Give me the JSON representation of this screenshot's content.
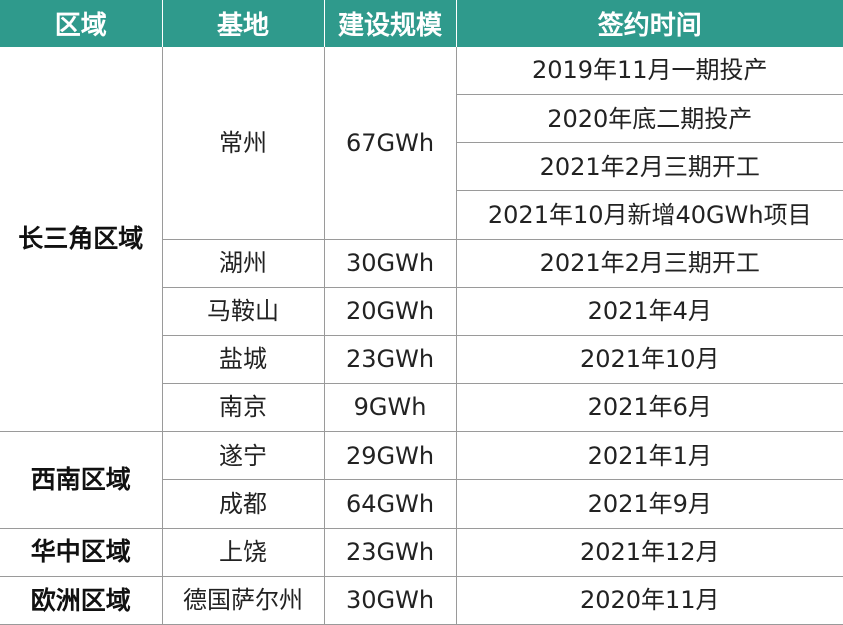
{
  "header": [
    "区域",
    "基地",
    "建设规模",
    "签约时间"
  ],
  "regions": {
    "yangtze": "长三角区域",
    "southwest": "西南区域",
    "central": "华中区域",
    "europe": "欧洲区域"
  },
  "rows": {
    "changzhou": {
      "base": "常州",
      "scale": "67GWh",
      "times": [
        "2019年11月一期投产",
        "2020年底二期投产",
        "2021年2月三期开工",
        "2021年10月新增40GWh项目"
      ]
    },
    "huzhou": {
      "base": "湖州",
      "scale": "30GWh",
      "time": "2021年2月三期开工"
    },
    "maanshan": {
      "base": "马鞍山",
      "scale": "20GWh",
      "time": "2021年4月"
    },
    "yancheng": {
      "base": "盐城",
      "scale": "23GWh",
      "time": "2021年10月"
    },
    "nanjing": {
      "base": "南京",
      "scale": "9GWh",
      "time": "2021年6月"
    },
    "suining": {
      "base": "遂宁",
      "scale": "29GWh",
      "time": "2021年1月"
    },
    "chengdu": {
      "base": "成都",
      "scale": "64GWh",
      "time": "2021年9月"
    },
    "shangrao": {
      "base": "上饶",
      "scale": "23GWh",
      "time": "2021年12月"
    },
    "saarland": {
      "base": "德国萨尔州",
      "scale": "30GWh",
      "time": "2020年11月"
    }
  },
  "colors": {
    "header_bg": "#2f9a8c",
    "header_text": "#ffffff",
    "border": "#9a9a9a"
  }
}
